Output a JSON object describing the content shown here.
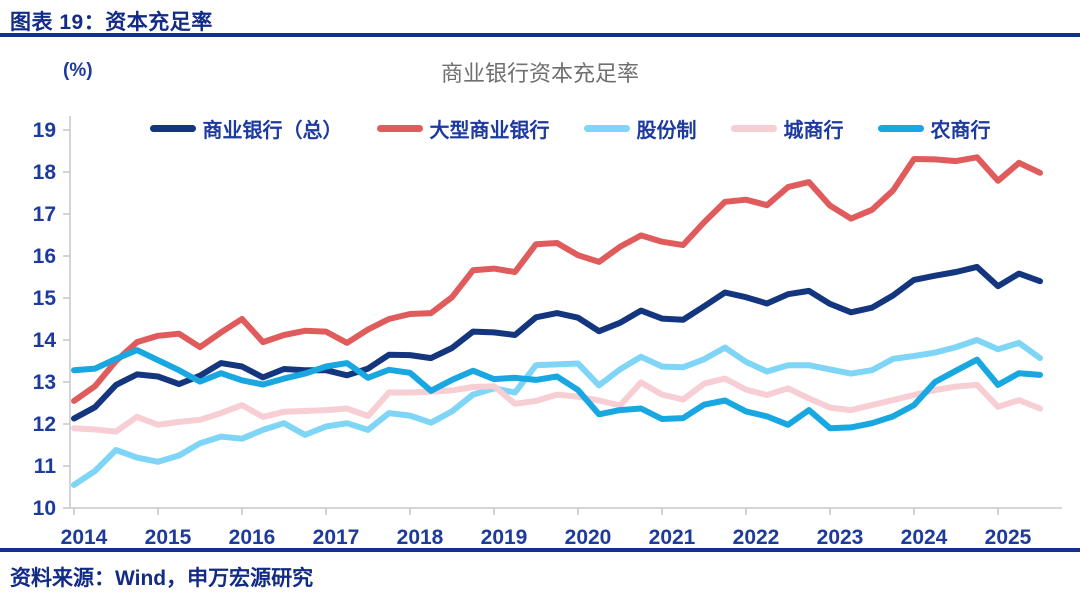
{
  "header": {
    "title": "图表 19：资本充足率"
  },
  "footer": {
    "source": "资料来源：Wind，申万宏源研究"
  },
  "chart": {
    "title": "商业银行资本充足率",
    "y_unit": "(%)"
  },
  "colors": {
    "header_navy": "#122b86",
    "rule_navy": "#12318f",
    "axis_text_navy": "#1d3a9e",
    "axis_line_gray": "#c9c9c9",
    "title_gray": "#6f6f6f"
  },
  "chart_data": {
    "type": "line",
    "title": "商业银行资本充足率",
    "y_unit": "(%)",
    "grid": false,
    "legend_position": "top",
    "ylim": [
      10,
      19
    ],
    "y_ticks": [
      10,
      11,
      12,
      13,
      14,
      15,
      16,
      17,
      18,
      19
    ],
    "x_tick_labels": [
      "2014",
      "2015",
      "2016",
      "2017",
      "2018",
      "2019",
      "2020",
      "2021",
      "2022",
      "2023",
      "2024",
      "2025"
    ],
    "categories": [
      "2014Q1",
      "2014Q2",
      "2014Q3",
      "2014Q4",
      "2015Q1",
      "2015Q2",
      "2015Q3",
      "2015Q4",
      "2016Q1",
      "2016Q2",
      "2016Q3",
      "2016Q4",
      "2017Q1",
      "2017Q2",
      "2017Q3",
      "2017Q4",
      "2018Q1",
      "2018Q2",
      "2018Q3",
      "2018Q4",
      "2019Q1",
      "2019Q2",
      "2019Q3",
      "2019Q4",
      "2020Q1",
      "2020Q2",
      "2020Q3",
      "2020Q4",
      "2021Q1",
      "2021Q2",
      "2021Q3",
      "2021Q4",
      "2022Q1",
      "2022Q2",
      "2022Q3",
      "2022Q4",
      "2023Q1",
      "2023Q2",
      "2023Q3",
      "2023Q4",
      "2024Q1",
      "2024Q2",
      "2024Q3",
      "2024Q4",
      "2025Q1",
      "2025Q2",
      "2025Q3"
    ],
    "series": [
      {
        "name": "商业银行（总）",
        "color": "#14367e",
        "values": [
          12.13,
          12.4,
          12.93,
          13.18,
          13.13,
          12.95,
          13.15,
          13.45,
          13.37,
          13.11,
          13.31,
          13.28,
          13.28,
          13.16,
          13.32,
          13.65,
          13.64,
          13.57,
          13.81,
          14.2,
          14.18,
          14.12,
          14.54,
          14.64,
          14.53,
          14.21,
          14.41,
          14.7,
          14.51,
          14.48,
          14.8,
          15.13,
          15.02,
          14.87,
          15.09,
          15.17,
          14.86,
          14.66,
          14.77,
          15.06,
          15.43,
          15.53,
          15.62,
          15.74,
          15.28,
          15.58,
          15.4
        ]
      },
      {
        "name": "大型商业银行",
        "color": "#e05c5c",
        "values": [
          12.55,
          12.9,
          13.5,
          13.95,
          14.1,
          14.15,
          13.83,
          14.18,
          14.5,
          13.95,
          14.12,
          14.22,
          14.2,
          13.93,
          14.25,
          14.5,
          14.62,
          14.64,
          15.02,
          15.66,
          15.7,
          15.62,
          16.28,
          16.31,
          16.02,
          15.86,
          16.22,
          16.49,
          16.34,
          16.26,
          16.8,
          17.29,
          17.34,
          17.21,
          17.64,
          17.76,
          17.2,
          16.89,
          17.1,
          17.56,
          18.31,
          18.3,
          18.26,
          18.35,
          17.79,
          18.22,
          17.98
        ]
      },
      {
        "name": "股份制",
        "color": "#7ed5f5",
        "values": [
          10.55,
          10.88,
          11.38,
          11.2,
          11.1,
          11.25,
          11.54,
          11.7,
          11.65,
          11.86,
          12.02,
          11.74,
          11.94,
          12.02,
          11.86,
          12.26,
          12.2,
          12.03,
          12.3,
          12.7,
          12.85,
          12.75,
          13.4,
          13.42,
          13.44,
          12.92,
          13.3,
          13.6,
          13.37,
          13.35,
          13.54,
          13.82,
          13.48,
          13.25,
          13.4,
          13.4,
          13.3,
          13.2,
          13.28,
          13.55,
          13.62,
          13.7,
          13.83,
          14.0,
          13.78,
          13.93,
          13.57
        ]
      },
      {
        "name": "城商行",
        "color": "#f7ced4",
        "values": [
          11.9,
          11.87,
          11.82,
          12.17,
          11.98,
          12.05,
          12.1,
          12.26,
          12.45,
          12.17,
          12.29,
          12.31,
          12.33,
          12.37,
          12.19,
          12.75,
          12.75,
          12.77,
          12.8,
          12.88,
          12.9,
          12.48,
          12.55,
          12.7,
          12.65,
          12.56,
          12.44,
          12.99,
          12.7,
          12.58,
          12.96,
          13.08,
          12.82,
          12.69,
          12.85,
          12.61,
          12.39,
          12.33,
          12.45,
          12.57,
          12.69,
          12.81,
          12.89,
          12.93,
          12.41,
          12.57,
          12.37
        ]
      },
      {
        "name": "农商行",
        "color": "#18a7e0",
        "values": [
          13.28,
          13.32,
          13.55,
          13.76,
          13.52,
          13.28,
          13.01,
          13.21,
          13.04,
          12.94,
          13.08,
          13.2,
          13.37,
          13.45,
          13.1,
          13.29,
          13.22,
          12.79,
          13.05,
          13.27,
          13.07,
          13.1,
          13.05,
          13.13,
          12.81,
          12.23,
          12.33,
          12.37,
          12.12,
          12.14,
          12.46,
          12.56,
          12.3,
          12.18,
          11.98,
          12.33,
          11.9,
          11.92,
          12.02,
          12.18,
          12.45,
          13.0,
          13.27,
          13.53,
          12.93,
          13.21,
          13.17
        ]
      }
    ]
  }
}
